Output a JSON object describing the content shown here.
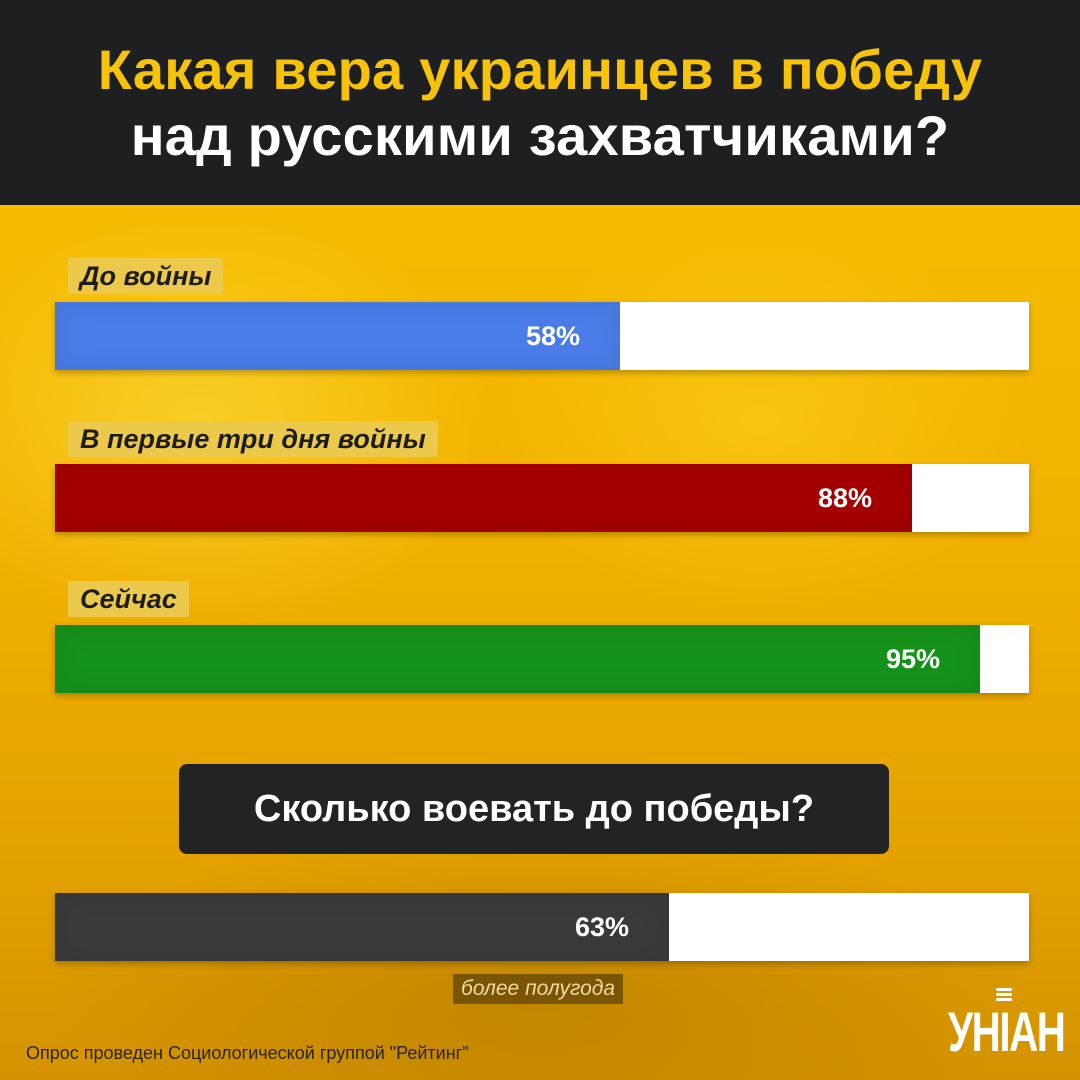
{
  "header": {
    "title_line1": "Какая вера украинцев в победу",
    "title_line2": "над русскими захватчиками?"
  },
  "colors": {
    "header_bg": "#1e1f21",
    "title_yellow": "#f7c20a",
    "background": "#f2b300",
    "label_bg": "#ecc94a",
    "track": "#ffffff",
    "series_before_war": "#4a7de8",
    "series_first_days": "#a50000",
    "series_now": "#15921a",
    "series_duration": "#3a3a3a"
  },
  "chart_data": [
    {
      "type": "bar",
      "orientation": "horizontal",
      "categories": [
        "До войны",
        "В первые три дня войны",
        "Сейчас"
      ],
      "values": [
        58,
        88,
        95
      ],
      "value_labels": [
        "58%",
        "88%",
        "95%"
      ],
      "colors": [
        "#4a7de8",
        "#a50000",
        "#15921a"
      ],
      "xlim": [
        0,
        100
      ]
    },
    {
      "type": "bar",
      "orientation": "horizontal",
      "title": "Сколько воевать до победы?",
      "categories": [
        "более полугода"
      ],
      "values": [
        63
      ],
      "value_labels": [
        "63%"
      ],
      "colors": [
        "#3a3a3a"
      ],
      "xlim": [
        0,
        100
      ]
    }
  ],
  "footer": {
    "source": "Опрос проведен Социологической группой \"Рейтинг\"",
    "logo": "УНІАН",
    "logo_icon": "microphone-icon"
  }
}
